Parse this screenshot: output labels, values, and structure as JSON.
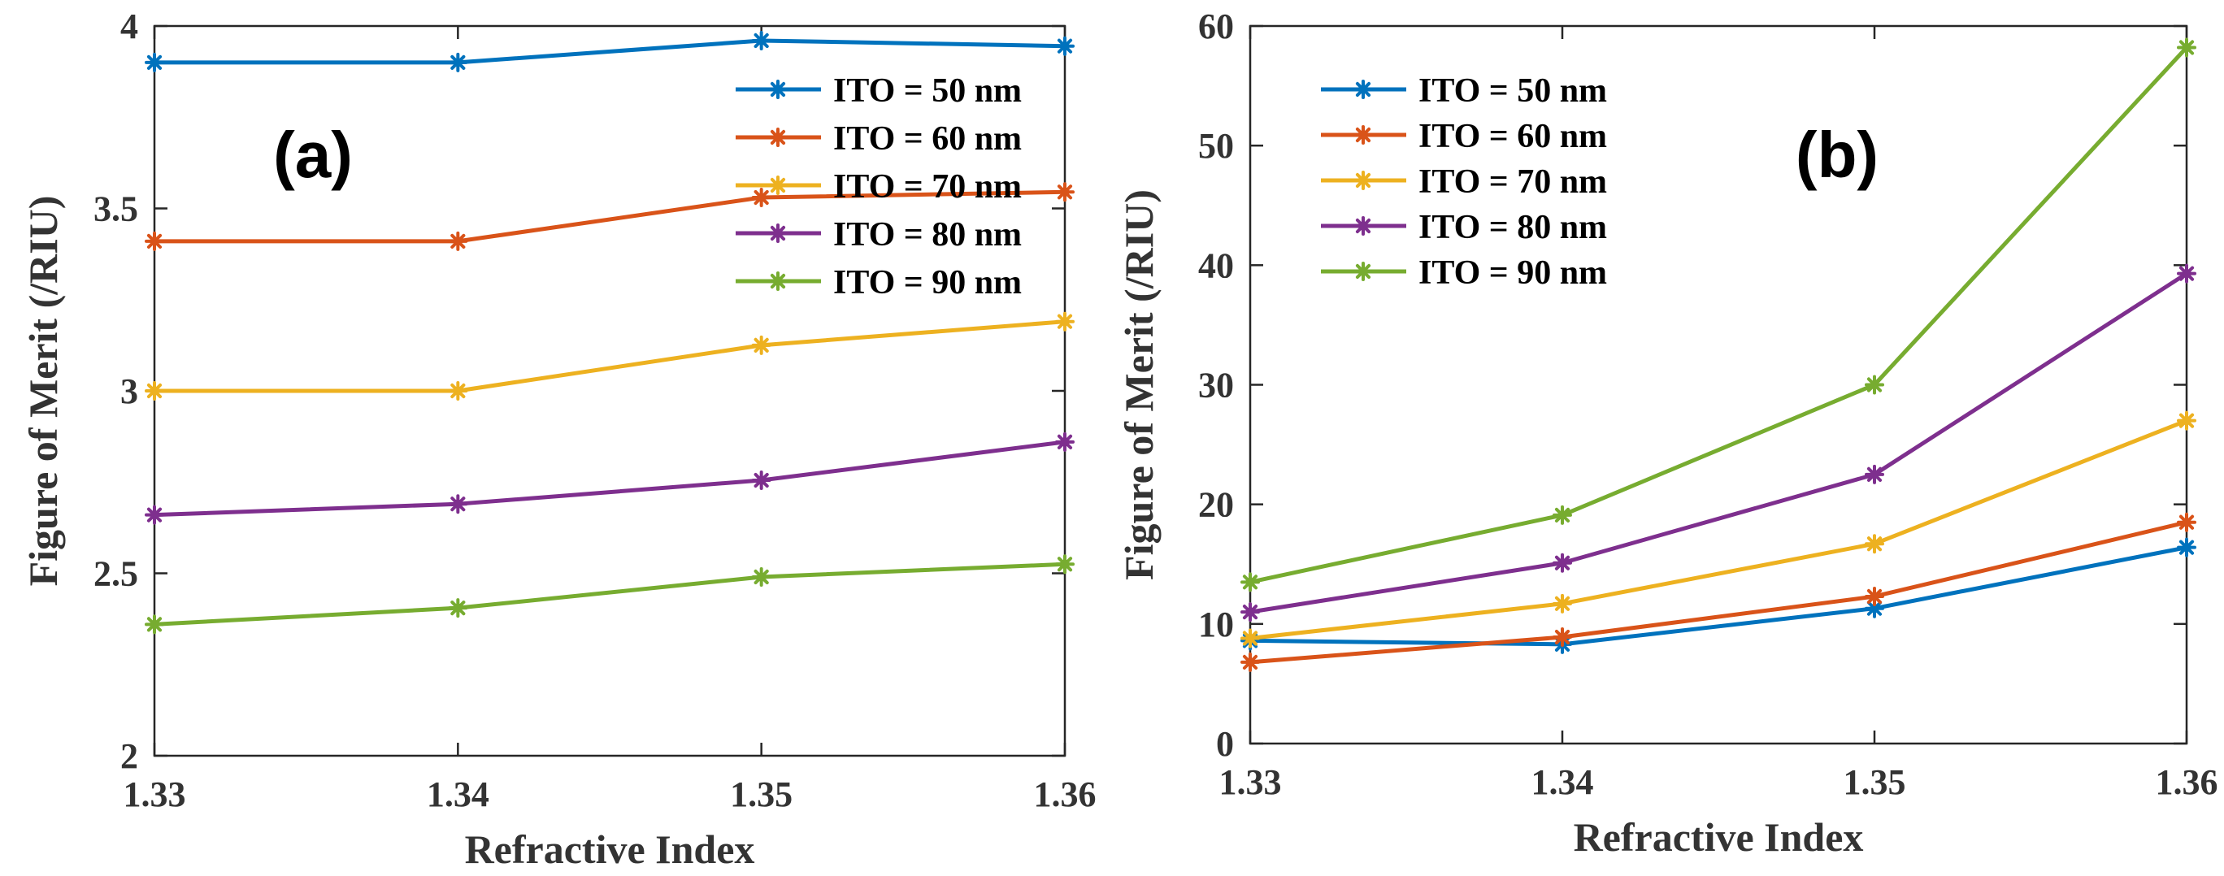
{
  "chart_data": [
    {
      "type": "line",
      "panel_label": "(a)",
      "xlabel": "Refractive Index",
      "ylabel": "Figure of Merit (/RIU)",
      "x": [
        1.33,
        1.34,
        1.35,
        1.36
      ],
      "xticks": [
        "1.33",
        "1.34",
        "1.35",
        "1.36"
      ],
      "xlim": [
        1.33,
        1.36
      ],
      "ylim": [
        2,
        4
      ],
      "yticks": [
        2,
        2.5,
        3,
        3.5,
        4
      ],
      "ytick_labels": [
        "2",
        "2.5",
        "3",
        "3.5",
        "4"
      ],
      "legend_position": "top-right",
      "grid": false,
      "series": [
        {
          "name": "ITO = 50 nm",
          "color": "#0072BD",
          "values": [
            3.9,
            3.9,
            3.96,
            3.945
          ]
        },
        {
          "name": "ITO = 60 nm",
          "color": "#D95319",
          "values": [
            3.41,
            3.41,
            3.53,
            3.545
          ]
        },
        {
          "name": "ITO = 70 nm",
          "color": "#EDB120",
          "values": [
            3.0,
            3.0,
            3.125,
            3.19
          ]
        },
        {
          "name": "ITO = 80 nm",
          "color": "#7E2F8E",
          "values": [
            2.66,
            2.69,
            2.755,
            2.86
          ]
        },
        {
          "name": "ITO = 90 nm",
          "color": "#77AC30",
          "values": [
            2.36,
            2.405,
            2.49,
            2.525
          ]
        }
      ]
    },
    {
      "type": "line",
      "panel_label": "(b)",
      "xlabel": "Refractive Index",
      "ylabel": "Figure of Merit (/RIU)",
      "x": [
        1.33,
        1.34,
        1.35,
        1.36
      ],
      "xticks": [
        "1.33",
        "1.34",
        "1.35",
        "1.36"
      ],
      "xlim": [
        1.33,
        1.36
      ],
      "ylim": [
        0,
        60
      ],
      "yticks": [
        0,
        10,
        20,
        30,
        40,
        50,
        60
      ],
      "ytick_labels": [
        "0",
        "10",
        "20",
        "30",
        "40",
        "50",
        "60"
      ],
      "legend_position": "top-left",
      "grid": false,
      "series": [
        {
          "name": "ITO = 50 nm",
          "color": "#0072BD",
          "values": [
            8.6,
            8.3,
            11.3,
            16.4
          ]
        },
        {
          "name": "ITO = 60 nm",
          "color": "#D95319",
          "values": [
            6.8,
            8.9,
            12.3,
            18.5
          ]
        },
        {
          "name": "ITO = 70 nm",
          "color": "#EDB120",
          "values": [
            8.8,
            11.7,
            16.7,
            27.0
          ]
        },
        {
          "name": "ITO = 80 nm",
          "color": "#7E2F8E",
          "values": [
            11.0,
            15.1,
            22.5,
            39.3
          ]
        },
        {
          "name": "ITO = 90 nm",
          "color": "#77AC30",
          "values": [
            13.5,
            19.1,
            30.0,
            58.2
          ]
        }
      ]
    }
  ]
}
